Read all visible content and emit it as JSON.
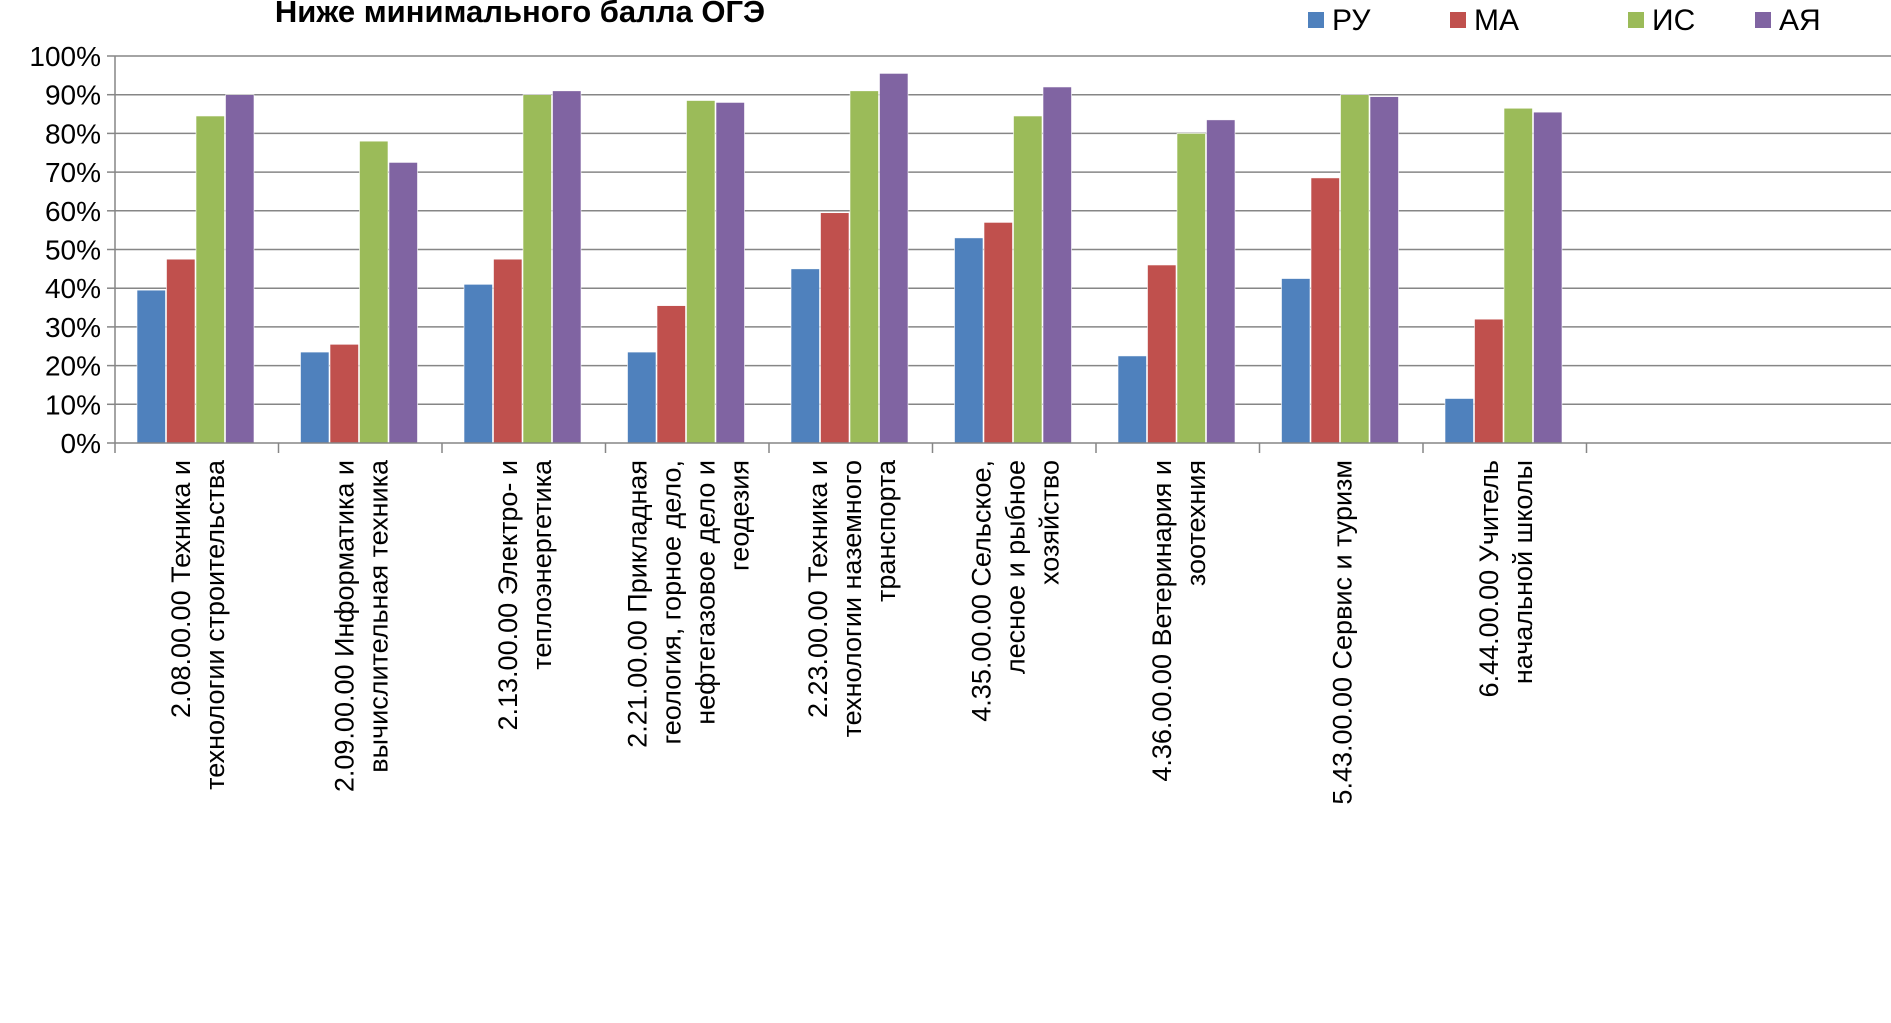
{
  "chart_data": {
    "type": "bar",
    "title": "Ниже минимального балла ОГЭ",
    "xlabel": "",
    "ylabel": "",
    "ylim": [
      0,
      100
    ],
    "y_ticks": [
      "0%",
      "10%",
      "20%",
      "30%",
      "40%",
      "50%",
      "60%",
      "70%",
      "80%",
      "90%",
      "100%"
    ],
    "grid": true,
    "legend_position": "top-right",
    "categories": [
      [
        "2.08.00.00 Техника и",
        "технологии строительства"
      ],
      [
        "2.09.00.00 Информатика и",
        "вычислительная техника"
      ],
      [
        "2.13.00.00 Электро- и",
        "теплоэнергетика"
      ],
      [
        "2.21.00.00 Прикладная",
        "геология, горное дело,",
        "нефтегазовое дело и",
        "геодезия"
      ],
      [
        "2.23.00.00 Техника и",
        "технологии наземного",
        "транспорта"
      ],
      [
        "4.35.00.00 Сельское,",
        "лесное и рыбное",
        "хозяйство"
      ],
      [
        "4.36.00.00 Ветеринария и",
        "зоотехния"
      ],
      [
        "5.43.00.00 Сервис и туризм"
      ],
      [
        "6.44.00.00 Учитель",
        "начальной школы"
      ]
    ],
    "series": [
      {
        "name": "РУ",
        "color": "#4F81BD",
        "values": [
          39.5,
          23.5,
          41,
          23.5,
          45,
          53,
          22.5,
          42.5,
          11.5
        ]
      },
      {
        "name": "МА",
        "color": "#C0504D",
        "values": [
          47.5,
          25.5,
          47.5,
          35.5,
          59.5,
          57,
          46,
          68.5,
          32
        ]
      },
      {
        "name": "ИС",
        "color": "#9BBB59",
        "values": [
          84.5,
          78,
          90,
          88.5,
          91,
          84.5,
          80,
          90,
          86.5
        ]
      },
      {
        "name": "АЯ",
        "color": "#8064A2",
        "values": [
          90,
          72.5,
          91,
          88,
          95.5,
          92,
          83.5,
          89.5,
          85.5
        ]
      }
    ]
  }
}
